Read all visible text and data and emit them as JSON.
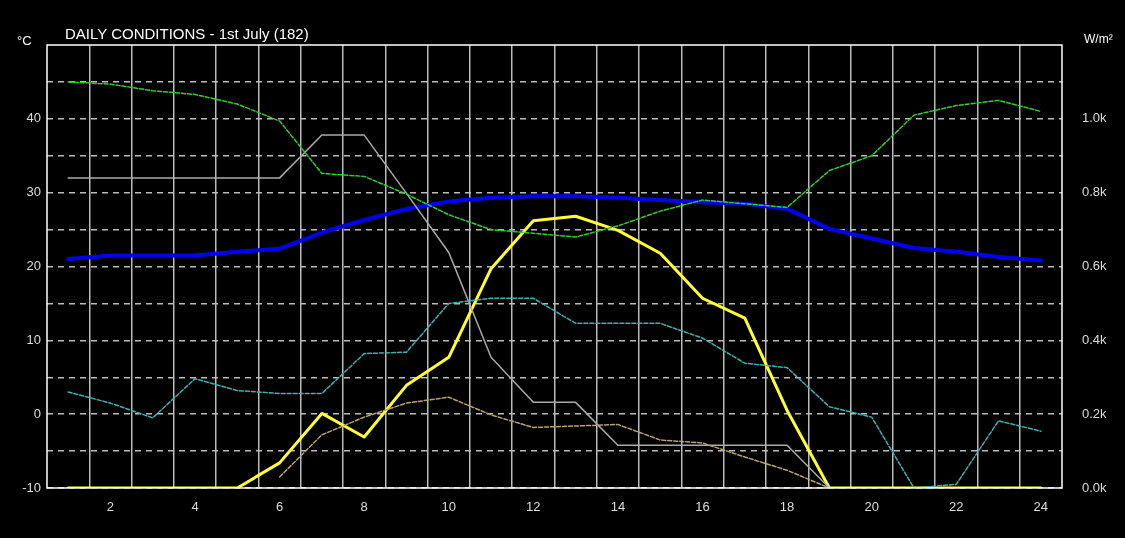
{
  "chart_data": {
    "type": "line",
    "title": "DAILY CONDITIONS - 1st July (182)",
    "ylabel": "°C",
    "y2label": "W/m²",
    "x": [
      1,
      2,
      3,
      4,
      5,
      6,
      7,
      8,
      9,
      10,
      11,
      12,
      13,
      14,
      15,
      16,
      17,
      18,
      19,
      20,
      21,
      22,
      23,
      24
    ],
    "xlim": [
      0.5,
      24.5
    ],
    "xticks": [
      {
        "value": 1.5,
        "label": null
      },
      2,
      {
        "value": 2.5,
        "label": null
      },
      {
        "value": 3.5,
        "label": null
      },
      4,
      {
        "value": 4.5,
        "label": null
      },
      {
        "value": 5.5,
        "label": null
      },
      6,
      {
        "value": 6.5,
        "label": null
      },
      {
        "value": 7.5,
        "label": null
      },
      8,
      {
        "value": 8.5,
        "label": null
      },
      {
        "value": 9.5,
        "label": null
      },
      10,
      {
        "value": 10.5,
        "label": null
      },
      {
        "value": 11.5,
        "label": null
      },
      12,
      {
        "value": 12.5,
        "label": null
      },
      {
        "value": 13.5,
        "label": null
      },
      14,
      {
        "value": 14.5,
        "label": null
      },
      {
        "value": 15.5,
        "label": null
      },
      16,
      {
        "value": 16.5,
        "label": null
      },
      {
        "value": 17.5,
        "label": null
      },
      18,
      {
        "value": 18.5,
        "label": null
      },
      {
        "value": 19.5,
        "label": null
      },
      20,
      {
        "value": 20.5,
        "label": null
      },
      {
        "value": 21.5,
        "label": null
      },
      22,
      {
        "value": 22.5,
        "label": null
      },
      {
        "value": 23.5,
        "label": null
      },
      24
    ],
    "ylim": [
      -10,
      50
    ],
    "yticks": [
      -10,
      {
        "value": -5,
        "label": null
      },
      0,
      {
        "value": 5,
        "label": null
      },
      10,
      {
        "value": 15,
        "label": null
      },
      20,
      {
        "value": 25,
        "label": null
      },
      30,
      {
        "value": 35,
        "label": null
      },
      40,
      {
        "value": 45,
        "label": null
      }
    ],
    "y2lim": [
      0,
      1200
    ],
    "y2ticks": [
      {
        "value": 0,
        "label": "0.0k"
      },
      {
        "value": 200,
        "label": "0.2k"
      },
      {
        "value": 400,
        "label": "0.4k"
      },
      {
        "value": 600,
        "label": "0.6k"
      },
      {
        "value": 800,
        "label": "0.8k"
      },
      {
        "value": 1000,
        "label": "1.0k"
      }
    ],
    "grid": true,
    "legend": false,
    "marker": "none",
    "series": [
      {
        "color": "#33cc33",
        "line_style": "dashed",
        "values": [
          45,
          44.7,
          43.8,
          43.3,
          42,
          39.7,
          32.6,
          32.2,
          29.8,
          27,
          25,
          24.5,
          24,
          25.5,
          27.5,
          29,
          28.5,
          28,
          33,
          35,
          40.5,
          41.8,
          42.5,
          41
        ]
      },
      {
        "color": "#40b0b0",
        "line_style": "dashed",
        "values": [
          3,
          1.5,
          -0.5,
          4.8,
          3.2,
          2.8,
          2.8,
          8.2,
          8.4,
          15,
          15.7,
          15.7,
          12.3,
          12.3,
          12.3,
          10.3,
          6.9,
          6.3,
          1,
          -0.4,
          -10,
          -9.5,
          -0.9,
          -2.3
        ]
      },
      {
        "color": "#b8a070",
        "line_style": "dashed",
        "values": [
          null,
          null,
          null,
          null,
          null,
          -8.5,
          -2.8,
          -0.4,
          1.5,
          2.3,
          -0.1,
          -1.8,
          -1.6,
          -1.4,
          -3.5,
          -3.9,
          -5.8,
          -7.6,
          -10,
          null,
          null,
          null,
          null,
          null
        ]
      },
      {
        "color": "#aaaaaa",
        "line_style": "solid",
        "values": [
          32,
          32,
          32,
          32,
          32,
          32,
          37.8,
          37.8,
          29.9,
          21.9,
          7.7,
          1.6,
          1.6,
          -4.2,
          -4.2,
          -4.2,
          -4.2,
          -4.2,
          -10,
          null,
          null,
          null,
          null,
          null
        ]
      },
      {
        "color": "#0000ee",
        "line_style": "solid",
        "values": [
          21,
          21.5,
          21.5,
          21.5,
          22,
          22.4,
          24.6,
          26.3,
          27.8,
          28.8,
          29.3,
          29.5,
          29.5,
          29.3,
          29,
          28.7,
          28.5,
          27.8,
          25.1,
          23.8,
          22.5,
          22,
          21.3,
          20.8
        ]
      },
      {
        "color": "#ffff33",
        "line_style": "solid",
        "axis": "y2",
        "values": [
          0,
          0,
          0,
          0,
          0,
          68,
          202,
          138,
          278,
          354,
          594,
          724,
          736,
          698,
          636,
          514,
          460,
          210,
          0,
          0,
          0,
          0,
          0,
          0
        ]
      }
    ]
  }
}
